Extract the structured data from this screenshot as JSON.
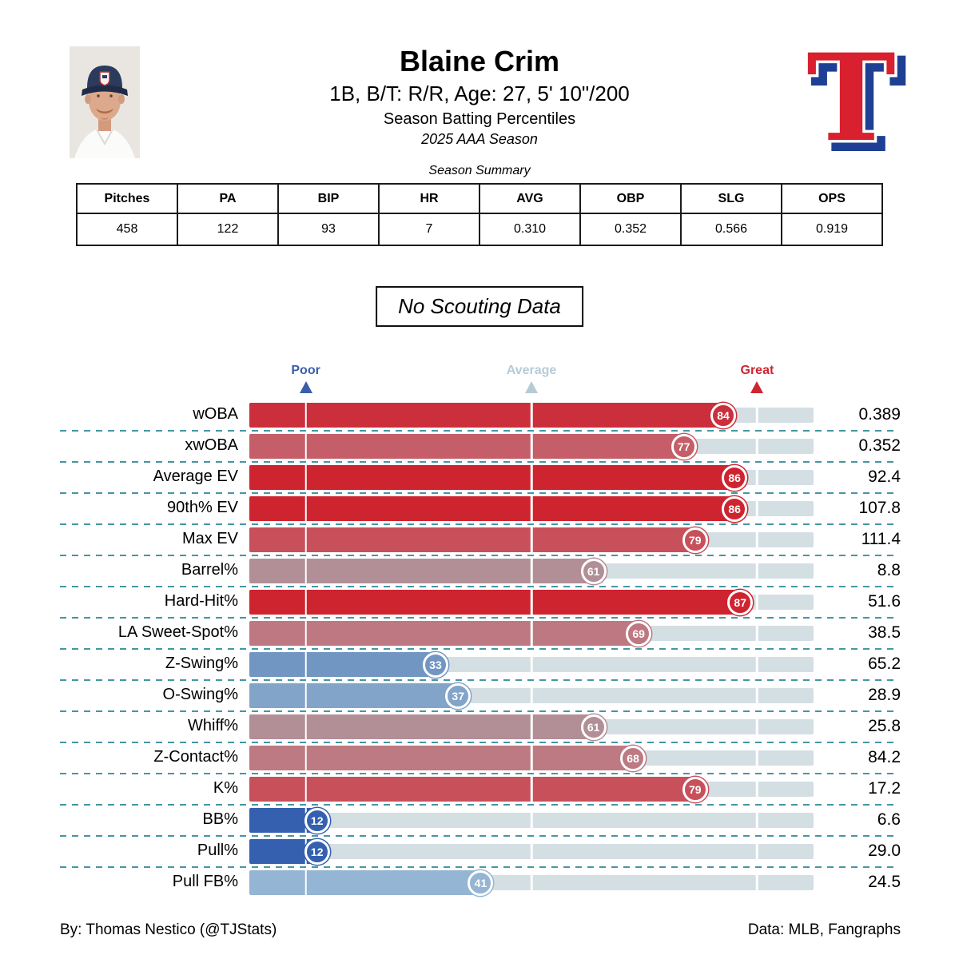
{
  "header": {
    "title": "Blaine Crim",
    "subtitle": "1B, B/T: R/R, Age: 27, 5' 10\"/200",
    "line3": "Season Batting Percentiles",
    "line4": "2025 AAA Season"
  },
  "summary": {
    "caption": "Season Summary",
    "columns": [
      "Pitches",
      "PA",
      "BIP",
      "HR",
      "AVG",
      "OBP",
      "SLG",
      "OPS"
    ],
    "values": [
      "458",
      "122",
      "93",
      "7",
      "0.310",
      "0.352",
      "0.566",
      "0.919"
    ]
  },
  "scouting_note": "No Scouting Data",
  "chart_data": {
    "type": "bar",
    "title": "Season Batting Percentiles",
    "subtitle": "2025 AAA Season",
    "xlabel": "percentile",
    "xlim": [
      0,
      100
    ],
    "track_color": "#D4DFE4",
    "separator_color": "#4596A4",
    "axis_markers": [
      {
        "label": "Poor",
        "percentile": 10,
        "color": "#3A5EA9"
      },
      {
        "label": "Average",
        "percentile": 50,
        "color": "#B7CBD7"
      },
      {
        "label": "Great",
        "percentile": 90,
        "color": "#CE2530"
      }
    ],
    "rows": [
      {
        "metric": "wOBA",
        "percentile": 84,
        "value": "0.389",
        "color": "#CB2F3C"
      },
      {
        "metric": "xwOBA",
        "percentile": 77,
        "value": "0.352",
        "color": "#C55E68"
      },
      {
        "metric": "Average EV",
        "percentile": 86,
        "value": "92.4",
        "color": "#CE2430"
      },
      {
        "metric": "90th% EV",
        "percentile": 86,
        "value": "107.8",
        "color": "#CE2430"
      },
      {
        "metric": "Max EV",
        "percentile": 79,
        "value": "111.4",
        "color": "#C8505B"
      },
      {
        "metric": "Barrel%",
        "percentile": 61,
        "value": "8.8",
        "color": "#B28F97"
      },
      {
        "metric": "Hard-Hit%",
        "percentile": 87,
        "value": "51.6",
        "color": "#CE2430"
      },
      {
        "metric": "LA Sweet-Spot%",
        "percentile": 69,
        "value": "38.5",
        "color": "#BE7881"
      },
      {
        "metric": "Z-Swing%",
        "percentile": 33,
        "value": "65.2",
        "color": "#7296C2"
      },
      {
        "metric": "O-Swing%",
        "percentile": 37,
        "value": "28.9",
        "color": "#82A4C9"
      },
      {
        "metric": "Whiff%",
        "percentile": 61,
        "value": "25.8",
        "color": "#B28F97"
      },
      {
        "metric": "Z-Contact%",
        "percentile": 68,
        "value": "84.2",
        "color": "#BD7A82"
      },
      {
        "metric": "K%",
        "percentile": 79,
        "value": "17.2",
        "color": "#C8505B"
      },
      {
        "metric": "BB%",
        "percentile": 12,
        "value": "6.6",
        "color": "#3560B0"
      },
      {
        "metric": "Pull%",
        "percentile": 12,
        "value": "29.0",
        "color": "#3560B0"
      },
      {
        "metric": "Pull FB%",
        "percentile": 41,
        "value": "24.5",
        "color": "#94B5D3"
      }
    ]
  },
  "footer": {
    "left": "By: Thomas Nestico (@TJStats)",
    "right": "Data: MLB, Fangraphs"
  }
}
